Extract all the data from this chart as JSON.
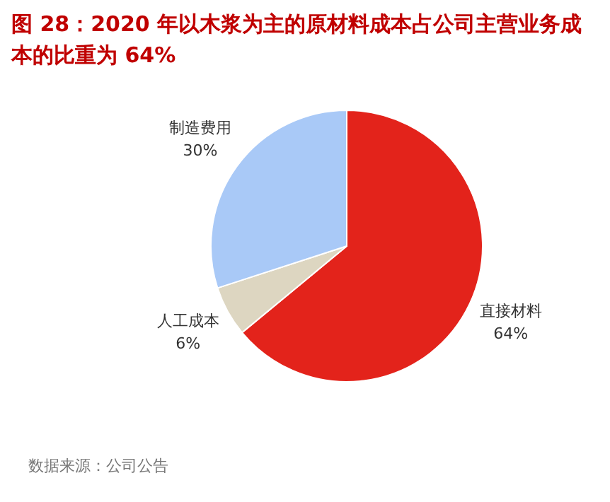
{
  "chart_data": {
    "type": "pie",
    "title": "图 28：2020 年以木浆为主的原材料成本占公司主营业务成本的比重为 64%",
    "categories": [
      "直接材料",
      "人工成本",
      "制造费用"
    ],
    "values": [
      64,
      6,
      30
    ],
    "colors": [
      "#e3231b",
      "#ddd6c1",
      "#a9c9f7"
    ],
    "value_labels": [
      "64%",
      "6%",
      "30%"
    ],
    "annotations": [
      "数据来源：公司公告"
    ]
  }
}
